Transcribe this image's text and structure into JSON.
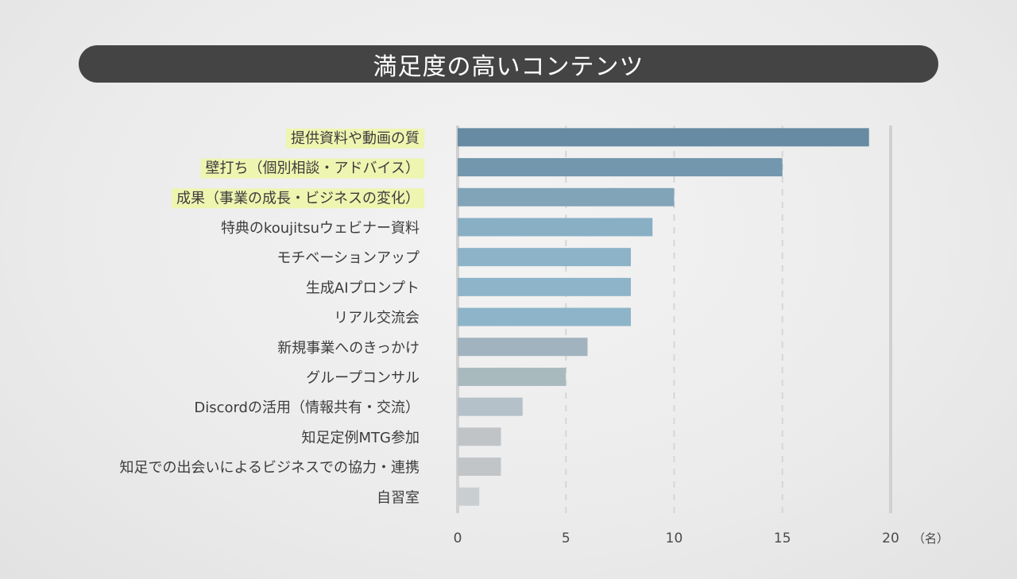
{
  "title": "満足度の高いコンテンツ",
  "colors": {
    "title_bg": "#444444",
    "highlight": "#eef5b0",
    "axis": "#d0d0d0",
    "grid": "#d6d6d6"
  },
  "chart_data": {
    "type": "bar",
    "orientation": "horizontal",
    "title": "満足度の高いコンテンツ",
    "unit": "（名）",
    "xlim": [
      0,
      20
    ],
    "xticks": [
      0,
      5,
      10,
      15,
      20
    ],
    "grid": true,
    "categories": [
      "提供資料や動画の質",
      "壁打ち（個別相談・アドバイス）",
      "成果（事業の成長・ビジネスの変化）",
      "特典のkoujitsuウェビナー資料",
      "モチベーションアップ",
      "生成AIプロンプト",
      "リアル交流会",
      "新規事業へのきっかけ",
      "グループコンサル",
      "Discordの活用（情報共有・交流）",
      "知足定例MTG参加",
      "知足での出会いによるビジネスでの協力・連携",
      "自習室"
    ],
    "values": [
      19,
      15,
      10,
      9,
      8,
      8,
      8,
      6,
      5,
      3,
      2,
      2,
      1
    ],
    "highlighted": [
      true,
      true,
      true,
      false,
      false,
      false,
      false,
      false,
      false,
      false,
      false,
      false,
      false
    ],
    "bar_colors": [
      "#668ba3",
      "#7398ae",
      "#81a4b9",
      "#89afc5",
      "#8db3c8",
      "#8eb4c9",
      "#8eb4c9",
      "#a1b3bf",
      "#a9babf",
      "#b5c1c8",
      "#c0c4c7",
      "#c2c5c8",
      "#c9ced1"
    ]
  }
}
